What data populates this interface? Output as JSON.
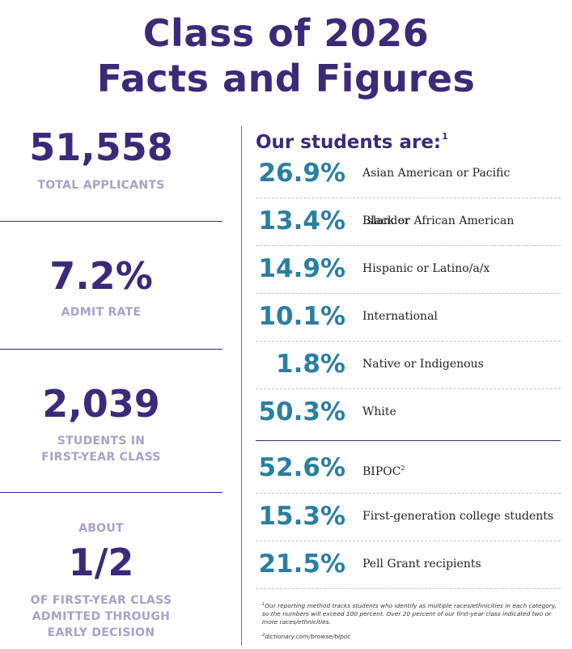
{
  "title": {
    "line1": "Class of 2026",
    "line2": "Facts and Figures"
  },
  "left": {
    "applicants": {
      "value": "51,558",
      "label": "TOTAL APPLICANTS"
    },
    "admit_rate": {
      "value": "7.2%",
      "label": "ADMIT RATE"
    },
    "class_size": {
      "value": "2,039",
      "label_line1": "STUDENTS IN",
      "label_line2": "FIRST-YEAR CLASS"
    },
    "early_decision": {
      "prefix": "ABOUT",
      "value": "1/2",
      "label_line1": "OF FIRST-YEAR CLASS",
      "label_line2": "ADMITTED THROUGH",
      "label_line3": "EARLY DECISION"
    }
  },
  "right": {
    "heading": "Our students are:",
    "heading_sup": "1",
    "rows": [
      {
        "pct": "26.9%",
        "label": "Asian American or Pacific Islander"
      },
      {
        "pct": "13.4%",
        "label": "Black or African American"
      },
      {
        "pct": "14.9%",
        "label": "Hispanic or Latino/a/x"
      },
      {
        "pct": "10.1%",
        "label": "International"
      },
      {
        "pct": "1.8%",
        "label": "Native or Indigenous"
      },
      {
        "pct": "50.3%",
        "label": "White"
      },
      {
        "pct": "52.6%",
        "label": "BIPOC",
        "sup": "2"
      },
      {
        "pct": "15.3%",
        "label": "First-generation college students"
      },
      {
        "pct": "21.5%",
        "label": "Pell Grant recipients"
      }
    ]
  },
  "footnotes": {
    "fn1_sup": "1",
    "fn1": "Our reporting method tracks students who identify as multiple races/ethnicities in each category, so the numbers will exceed 100 percent. Over 20 percent of our first-year class indicated two or more races/ethnicities.",
    "fn2_sup": "2",
    "fn2": "dictionary.com/browse/bipoc"
  },
  "colors": {
    "purple": "#3b2a78",
    "lavender": "#aa9fcb",
    "teal": "#2a7ea2"
  }
}
